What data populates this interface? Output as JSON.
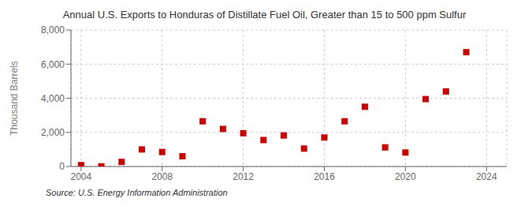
{
  "chart_data": {
    "type": "scatter",
    "title": "Annual U.S. Exports to Honduras of Distillate Fuel Oil, Greater than 15 to 500 ppm Sulfur",
    "ylabel": "Thousand Barrels",
    "annotations": [
      "Source: U.S. Energy Information Administration"
    ],
    "x": [
      2004,
      2005,
      2006,
      2007,
      2008,
      2009,
      2010,
      2011,
      2012,
      2013,
      2014,
      2015,
      2016,
      2017,
      2018,
      2019,
      2020,
      2021,
      2022,
      2023
    ],
    "values": [
      80,
      10,
      270,
      1000,
      850,
      600,
      2650,
      2200,
      1950,
      1550,
      1820,
      1050,
      1700,
      2650,
      3500,
      1120,
      820,
      3950,
      4400,
      6700
    ],
    "color": "#cc0000",
    "marker": "square",
    "xlim": [
      2003.5,
      2025.0
    ],
    "xticks": [
      2004,
      2008,
      2012,
      2016,
      2020,
      2024
    ],
    "ylim": [
      0,
      8000
    ],
    "yticks": [
      0,
      {
        "value": 2000,
        "label": "2,000"
      },
      {
        "value": 4000,
        "label": "4,000"
      },
      {
        "value": 6000,
        "label": "6,000"
      },
      {
        "value": 8000,
        "label": "8,000"
      }
    ],
    "grid": true
  }
}
